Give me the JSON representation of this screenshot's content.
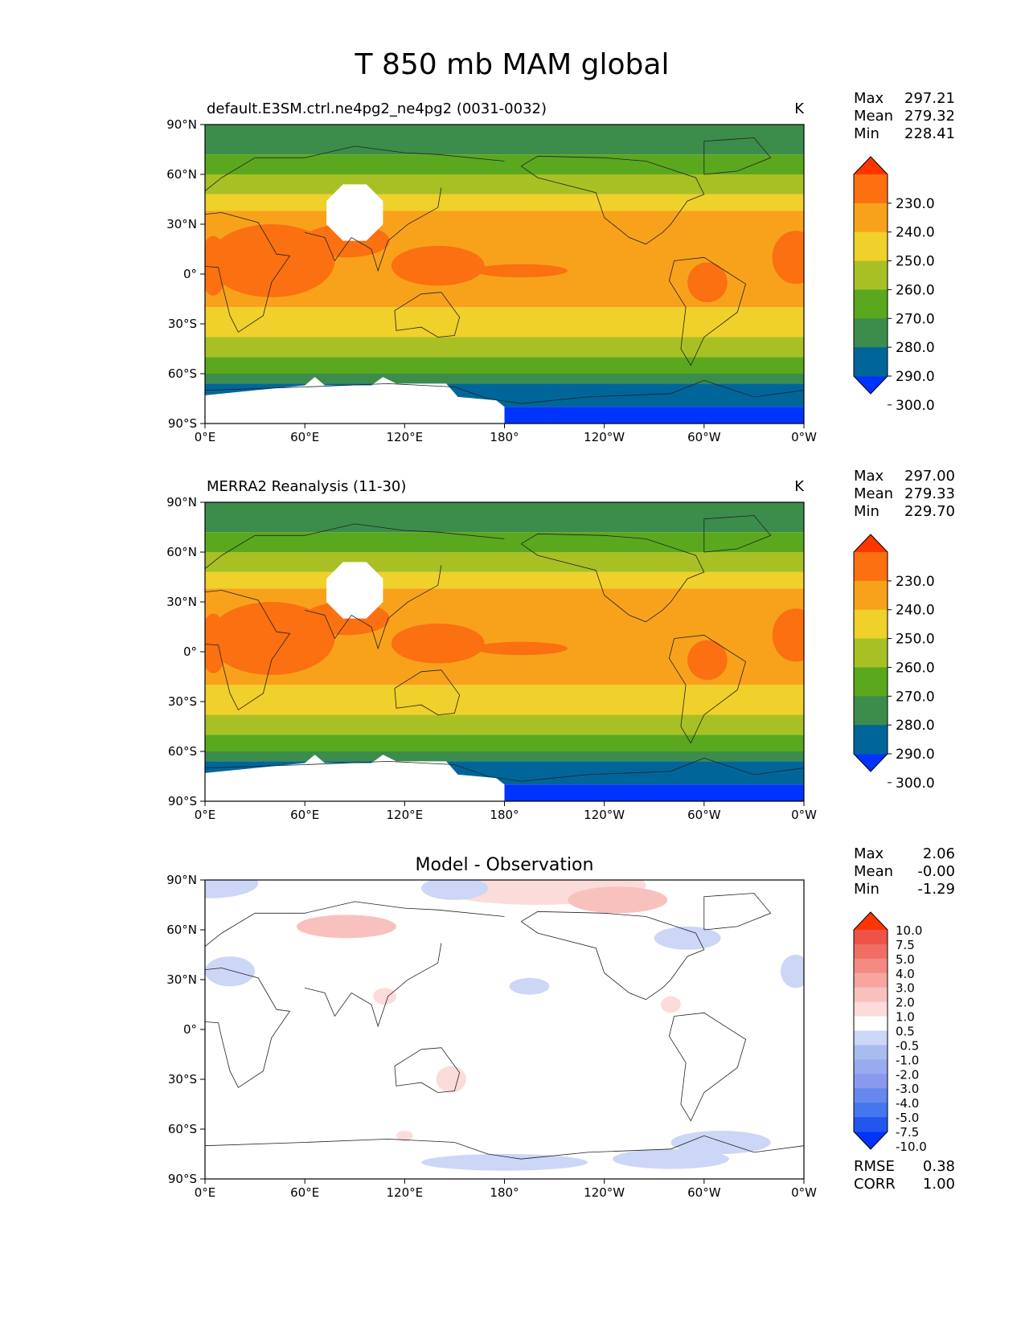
{
  "title": "T 850 mb MAM global",
  "chart_data": [
    {
      "type": "heatmap",
      "kind": "field",
      "subtitle": "default.E3SM.ctrl.ne4pg2_ne4pg2 (0031-0032)",
      "units": "K",
      "stats": {
        "labels": [
          "Max",
          "Mean",
          "Min"
        ],
        "values": [
          "297.21",
          "279.32",
          "228.41"
        ]
      },
      "xticks": [
        "0°E",
        "60°E",
        "120°E",
        "180°",
        "120°W",
        "60°W",
        "0°W"
      ],
      "yticks": [
        "90°N",
        "60°N",
        "30°N",
        "0°",
        "30°S",
        "60°S",
        "90°S"
      ],
      "colorbar": {
        "colors": [
          "#0033ff",
          "#006699",
          "#3c8c4c",
          "#5aa81e",
          "#a8c024",
          "#f0d02a",
          "#f8a21c",
          "#fb7010",
          "#ff3500"
        ],
        "labels": [
          "230.0",
          "240.0",
          "250.0",
          "260.0",
          "270.0",
          "280.0",
          "290.0",
          "300.0"
        ]
      },
      "bands": [
        {
          "lat": 90,
          "color": "#3c8c4c"
        },
        {
          "lat": 72,
          "color": "#5aa81e"
        },
        {
          "lat": 60,
          "color": "#a8c024"
        },
        {
          "lat": 48,
          "color": "#f0d02a"
        },
        {
          "lat": 38,
          "color": "#f8a21c"
        },
        {
          "lat": -20,
          "color": "#f0d02a"
        },
        {
          "lat": -38,
          "color": "#a8c024"
        },
        {
          "lat": -50,
          "color": "#5aa81e"
        },
        {
          "lat": -60,
          "color": "#3c8c4c"
        },
        {
          "lat": -66,
          "color": "#006699"
        },
        {
          "lat": -80,
          "color": "#0033ff"
        }
      ]
    },
    {
      "type": "heatmap",
      "kind": "field",
      "subtitle": "MERRA2 Reanalysis (11-30)",
      "units": "K",
      "stats": {
        "labels": [
          "Max",
          "Mean",
          "Min"
        ],
        "values": [
          "297.00",
          "279.33",
          "229.70"
        ]
      },
      "xticks": [
        "0°E",
        "60°E",
        "120°E",
        "180°",
        "120°W",
        "60°W",
        "0°W"
      ],
      "yticks": [
        "90°N",
        "60°N",
        "30°N",
        "0°",
        "30°S",
        "60°S",
        "90°S"
      ],
      "colorbar": {
        "colors": [
          "#0033ff",
          "#006699",
          "#3c8c4c",
          "#5aa81e",
          "#a8c024",
          "#f0d02a",
          "#f8a21c",
          "#fb7010",
          "#ff3500"
        ],
        "labels": [
          "230.0",
          "240.0",
          "250.0",
          "260.0",
          "270.0",
          "280.0",
          "290.0",
          "300.0"
        ]
      },
      "bands": [
        {
          "lat": 90,
          "color": "#3c8c4c"
        },
        {
          "lat": 72,
          "color": "#5aa81e"
        },
        {
          "lat": 60,
          "color": "#a8c024"
        },
        {
          "lat": 48,
          "color": "#f0d02a"
        },
        {
          "lat": 38,
          "color": "#f8a21c"
        },
        {
          "lat": -20,
          "color": "#f0d02a"
        },
        {
          "lat": -38,
          "color": "#a8c024"
        },
        {
          "lat": -50,
          "color": "#5aa81e"
        },
        {
          "lat": -60,
          "color": "#3c8c4c"
        },
        {
          "lat": -66,
          "color": "#006699"
        },
        {
          "lat": -80,
          "color": "#0033ff"
        }
      ]
    },
    {
      "type": "heatmap",
      "kind": "diff",
      "subtitle": "Model - Observation",
      "units": "",
      "stats": {
        "labels": [
          "Max",
          "Mean",
          "Min"
        ],
        "values": [
          "2.06",
          "-0.00",
          "-1.29"
        ]
      },
      "metrics": {
        "labels": [
          "RMSE",
          "CORR"
        ],
        "values": [
          "0.38",
          "1.00"
        ]
      },
      "xticks": [
        "0°E",
        "60°E",
        "120°E",
        "180°",
        "120°W",
        "60°W",
        "0°W"
      ],
      "yticks": [
        "90°N",
        "60°N",
        "30°N",
        "0°",
        "30°S",
        "60°S",
        "90°S"
      ],
      "colorbar": {
        "colors": [
          "#0033ff",
          "#2255ee",
          "#4477ee",
          "#6688ee",
          "#8899ee",
          "#99aaee",
          "#aabbf0",
          "#ccd6f6",
          "#ffffff",
          "#fcdcda",
          "#f9c1bd",
          "#f6a59f",
          "#f38a82",
          "#f06e64",
          "#ee5347",
          "#ff3500"
        ],
        "labels": [
          "10.0",
          "7.5",
          "5.0",
          "4.0",
          "3.0",
          "2.0",
          "1.0",
          "0.5",
          "-0.5",
          "-1.0",
          "-2.0",
          "-3.0",
          "-4.0",
          "-5.0",
          "-7.5",
          "-10.0"
        ]
      },
      "patches": [
        {
          "lon": 2,
          "lat": 88,
          "w": 60,
          "h": 18,
          "color": "#ccd6f6"
        },
        {
          "lon": 200,
          "lat": 87,
          "w": 130,
          "h": 24,
          "color": "#fcdcda"
        },
        {
          "lon": 248,
          "lat": 78,
          "w": 60,
          "h": 16,
          "color": "#f9c1bd"
        },
        {
          "lon": 85,
          "lat": 62,
          "w": 60,
          "h": 14,
          "color": "#f9c1bd"
        },
        {
          "lon": 150,
          "lat": 85,
          "w": 40,
          "h": 14,
          "color": "#ccd6f6"
        },
        {
          "lon": 290,
          "lat": 55,
          "w": 40,
          "h": 14,
          "color": "#ccd6f6"
        },
        {
          "lon": 355,
          "lat": 35,
          "w": 18,
          "h": 20,
          "color": "#ccd6f6"
        },
        {
          "lon": 15,
          "lat": 35,
          "w": 30,
          "h": 18,
          "color": "#ccd6f6"
        },
        {
          "lon": 195,
          "lat": 26,
          "w": 24,
          "h": 10,
          "color": "#ccd6f6"
        },
        {
          "lon": 108,
          "lat": 20,
          "w": 14,
          "h": 10,
          "color": "#fcdcda"
        },
        {
          "lon": 280,
          "lat": 15,
          "w": 12,
          "h": 10,
          "color": "#fcdcda"
        },
        {
          "lon": 148,
          "lat": -30,
          "w": 18,
          "h": 16,
          "color": "#fcdcda"
        },
        {
          "lon": 120,
          "lat": -64,
          "w": 10,
          "h": 6,
          "color": "#fcdcda"
        },
        {
          "lon": 310,
          "lat": -68,
          "w": 60,
          "h": 14,
          "color": "#ccd6f6"
        },
        {
          "lon": 280,
          "lat": -78,
          "w": 70,
          "h": 12,
          "color": "#ccd6f6"
        },
        {
          "lon": 180,
          "lat": -80,
          "w": 100,
          "h": 10,
          "color": "#ccd6f6"
        }
      ]
    }
  ]
}
